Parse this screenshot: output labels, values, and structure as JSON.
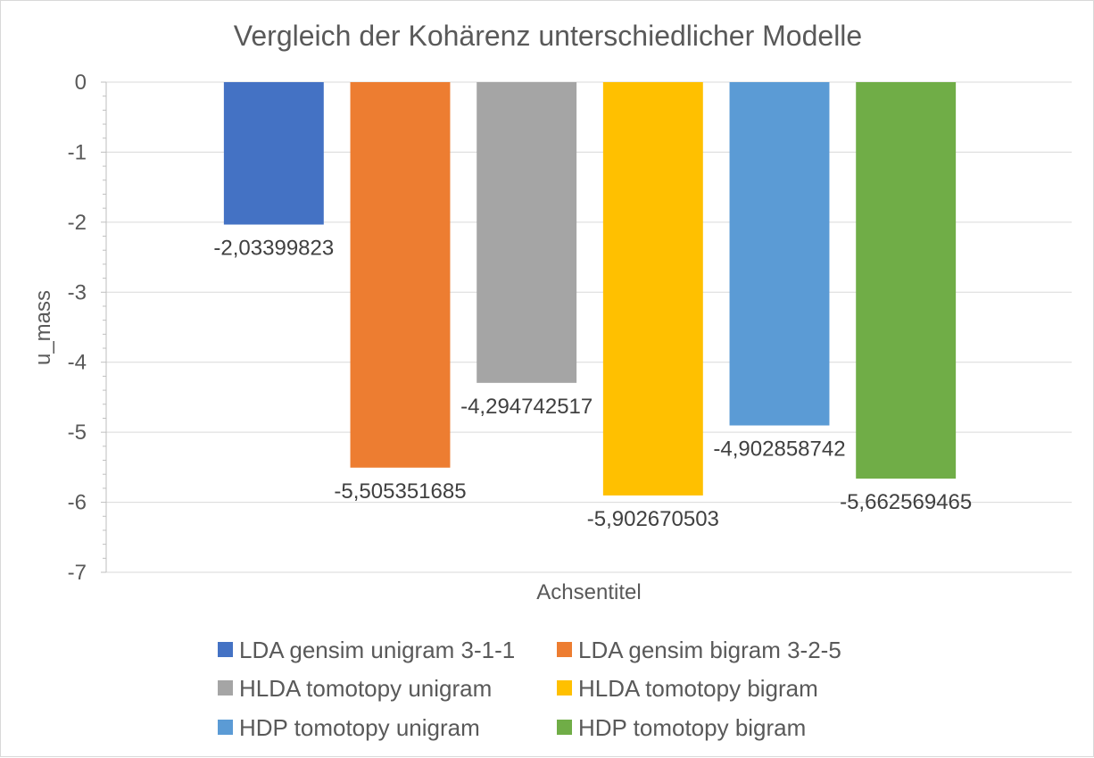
{
  "chart_data": {
    "type": "bar",
    "title": "Vergleich der Kohärenz unterschiedlicher Modelle",
    "xlabel": "Achsentitel",
    "ylabel": "u_mass",
    "ylim": [
      -7,
      0
    ],
    "yticks": [
      0,
      -1,
      -2,
      -3,
      -4,
      -5,
      -6,
      -7
    ],
    "ytick_labels": [
      "0",
      "-1",
      "-2",
      "-3",
      "-4",
      "-5",
      "-6",
      "-7"
    ],
    "grid": true,
    "legend_position": "bottom",
    "series": [
      {
        "name": "LDA gensim unigram 3-1-1",
        "value": -2.03399823,
        "label": "-2,03399823",
        "color": "#4472C4"
      },
      {
        "name": "LDA gensim bigram 3-2-5",
        "value": -5.505351685,
        "label": "-5,505351685",
        "color": "#ED7D31"
      },
      {
        "name": "HLDA tomotopy unigram",
        "value": -4.294742517,
        "label": "-4,294742517",
        "color": "#A5A5A5"
      },
      {
        "name": "HLDA tomotopy bigram",
        "value": -5.902670503,
        "label": "-5,902670503",
        "color": "#FFC000"
      },
      {
        "name": "HDP tomotopy unigram",
        "value": -4.902858742,
        "label": "-4,902858742",
        "color": "#5B9BD5"
      },
      {
        "name": "HDP tomotopy bigram",
        "value": -5.662569465,
        "label": "-5,662569465",
        "color": "#70AD47"
      }
    ]
  }
}
